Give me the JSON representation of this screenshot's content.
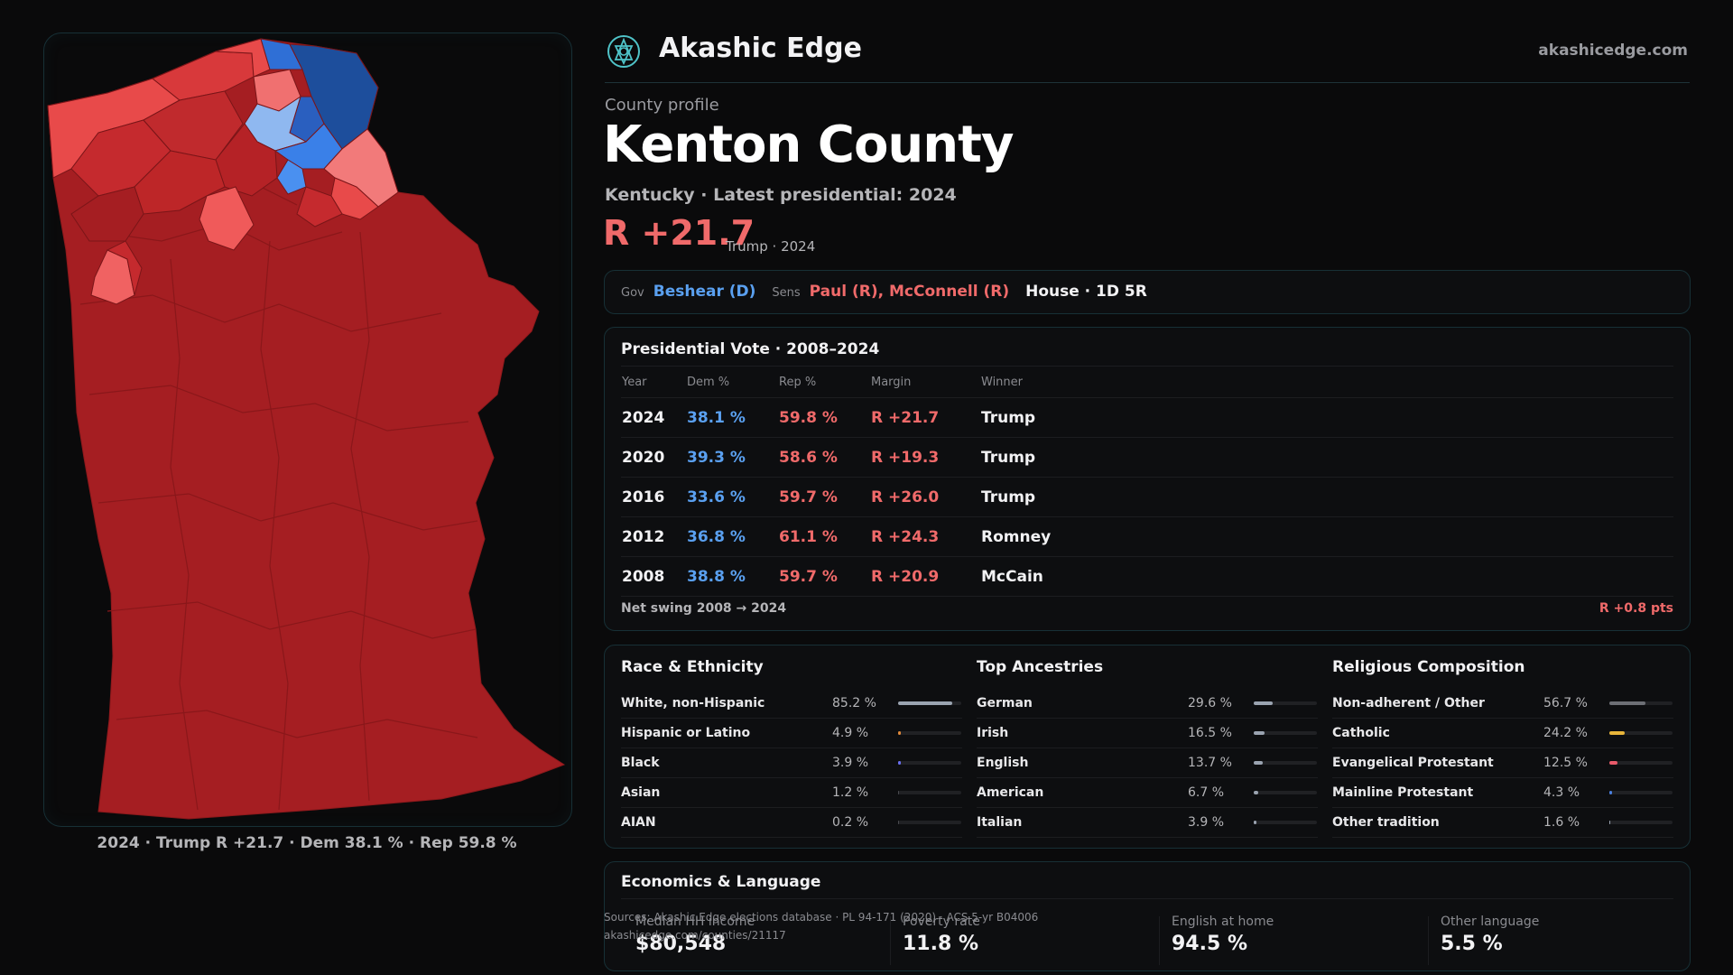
{
  "brand": {
    "name": "Akashic Edge",
    "site": "akashicedge.com",
    "logo_icon": "celtic-knot-icon"
  },
  "map": {
    "caption": "2024 · Trump R +21.7 · Dem 38.1 % · Rep 59.8 %"
  },
  "profile": {
    "eyebrow": "County profile",
    "title": "Kenton County",
    "subtitle": "Kentucky · Latest presidential: 2024",
    "margin": "R +21.7",
    "margin_note": "Trump · 2024"
  },
  "officials": {
    "gov_label": "Gov",
    "gov": "Beshear (D)",
    "sens_label": "Sens",
    "sens": "Paul (R), McConnell (R)",
    "house": "House · 1D 5R"
  },
  "presidential": {
    "title": "Presidential Vote · 2008–2024",
    "headers": [
      "Year",
      "Dem %",
      "Rep %",
      "Margin",
      "Winner"
    ],
    "rows": [
      [
        "2024",
        "38.1 %",
        "59.8 %",
        "R +21.7",
        "Trump"
      ],
      [
        "2020",
        "39.3 %",
        "58.6 %",
        "R +19.3",
        "Trump"
      ],
      [
        "2016",
        "33.6 %",
        "59.7 %",
        "R +26.0",
        "Trump"
      ],
      [
        "2012",
        "36.8 %",
        "61.1 %",
        "R +24.3",
        "Romney"
      ],
      [
        "2008",
        "38.8 %",
        "59.7 %",
        "R +20.9",
        "McCain"
      ]
    ],
    "swing_label": "Net swing 2008 → 2024",
    "swing_value": "R +0.8 pts"
  },
  "demographics": {
    "race": {
      "title": "Race & Ethnicity",
      "rows": [
        {
          "label": "White, non-Hispanic",
          "value": "85.2 %",
          "pct": 85.2,
          "color": "#9aa3b0"
        },
        {
          "label": "Hispanic or Latino",
          "value": "4.9 %",
          "pct": 4.9,
          "color": "#e0893a"
        },
        {
          "label": "Black",
          "value": "3.9 %",
          "pct": 3.9,
          "color": "#6a6ff0"
        },
        {
          "label": "Asian",
          "value": "1.2 %",
          "pct": 1.2,
          "color": "#4a4b50"
        },
        {
          "label": "AIAN",
          "value": "0.2 %",
          "pct": 0.2,
          "color": "#4a4b50"
        }
      ]
    },
    "ancestry": {
      "title": "Top Ancestries",
      "rows": [
        {
          "label": "German",
          "value": "29.6 %",
          "pct": 29.6,
          "color": "#9aa3b0"
        },
        {
          "label": "Irish",
          "value": "16.5 %",
          "pct": 16.5,
          "color": "#9aa3b0"
        },
        {
          "label": "English",
          "value": "13.7 %",
          "pct": 13.7,
          "color": "#9aa3b0"
        },
        {
          "label": "American",
          "value": "6.7 %",
          "pct": 6.7,
          "color": "#9aa3b0"
        },
        {
          "label": "Italian",
          "value": "3.9 %",
          "pct": 3.9,
          "color": "#9aa3b0"
        }
      ]
    },
    "religion": {
      "title": "Religious Composition",
      "rows": [
        {
          "label": "Non-adherent / Other",
          "value": "56.7 %",
          "pct": 56.7,
          "color": "#6d6f75"
        },
        {
          "label": "Catholic",
          "value": "24.2 %",
          "pct": 24.2,
          "color": "#e8b53a"
        },
        {
          "label": "Evangelical Protestant",
          "value": "12.5 %",
          "pct": 12.5,
          "color": "#e85a6a"
        },
        {
          "label": "Mainline Protestant",
          "value": "4.3 %",
          "pct": 4.3,
          "color": "#4a80e0"
        },
        {
          "label": "Other tradition",
          "value": "1.6 %",
          "pct": 1.6,
          "color": "#9aa3b0"
        }
      ]
    }
  },
  "economics": {
    "title": "Economics & Language",
    "stats": [
      {
        "label": "Median HH income",
        "value": "$80,548"
      },
      {
        "label": "Poverty rate",
        "value": "11.8 %"
      },
      {
        "label": "English at home",
        "value": "94.5 %"
      },
      {
        "label": "Other language",
        "value": "5.5 %"
      }
    ]
  },
  "sources": {
    "line1": "Sources: Akashic Edge elections database · PL 94-171 (2020) · ACS 5-yr B04006",
    "line2": "akashicedge.com/counties/21117"
  },
  "colors": {
    "accent_rep": "#f06a6a",
    "accent_dem": "#5aa0f0",
    "map_base": "#a51e22"
  }
}
